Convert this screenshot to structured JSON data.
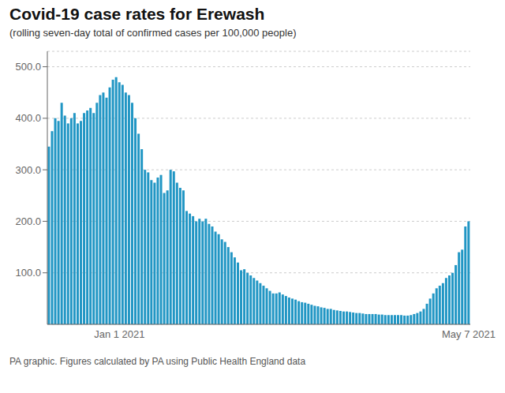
{
  "chart_data": {
    "type": "bar",
    "title": "Covid-19 case rates for Erewash",
    "subtitle": "(rolling seven-day total of confirmed cases per 100,000 people)",
    "footer": "PA graphic. Figures calculated by PA using Public Health England data",
    "categories": [
      null,
      null,
      null,
      null,
      null,
      null,
      null,
      null,
      null,
      null,
      null,
      null,
      null,
      null,
      null,
      null,
      null,
      null,
      null,
      null,
      null,
      null,
      "Jan 1 2021",
      null,
      null,
      null,
      null,
      null,
      null,
      null,
      null,
      null,
      null,
      null,
      null,
      null,
      null,
      null,
      null,
      null,
      null,
      null,
      null,
      null,
      null,
      null,
      null,
      null,
      null,
      null,
      null,
      null,
      null,
      null,
      null,
      null,
      null,
      null,
      null,
      null,
      null,
      null,
      null,
      null,
      null,
      null,
      null,
      null,
      null,
      null,
      null,
      null,
      null,
      null,
      null,
      null,
      null,
      null,
      null,
      null,
      null,
      null,
      null,
      null,
      null,
      null,
      null,
      null,
      null,
      null,
      null,
      null,
      null,
      null,
      null,
      null,
      null,
      null,
      null,
      null,
      null,
      null,
      null,
      null,
      null,
      null,
      null,
      null,
      null,
      null,
      null,
      null,
      null,
      null,
      null,
      null,
      null,
      null,
      null,
      null,
      null,
      null,
      null,
      null,
      null,
      null,
      null,
      null,
      null,
      null,
      null,
      "May 7 2021"
    ],
    "values": [
      345,
      375,
      400,
      395,
      430,
      405,
      390,
      400,
      410,
      390,
      395,
      410,
      415,
      420,
      410,
      430,
      445,
      450,
      440,
      460,
      475,
      480,
      470,
      465,
      450,
      445,
      430,
      400,
      370,
      340,
      300,
      295,
      280,
      275,
      285,
      290,
      255,
      260,
      300,
      297,
      275,
      265,
      260,
      220,
      215,
      210,
      200,
      205,
      200,
      205,
      195,
      190,
      180,
      175,
      165,
      160,
      150,
      140,
      130,
      120,
      105,
      107,
      100,
      95,
      90,
      85,
      80,
      75,
      70,
      65,
      60,
      60,
      62,
      58,
      55,
      52,
      50,
      48,
      45,
      43,
      42,
      40,
      38,
      36,
      35,
      33,
      32,
      30,
      30,
      28,
      27,
      26,
      25,
      25,
      24,
      23,
      22,
      22,
      21,
      20,
      20,
      20,
      20,
      19,
      19,
      18,
      18,
      18,
      18,
      18,
      18,
      17,
      17,
      18,
      20,
      22,
      25,
      30,
      40,
      50,
      60,
      70,
      75,
      80,
      90,
      95,
      100,
      115,
      140,
      145,
      190,
      200
    ],
    "color": "#2196C4",
    "ylim": [
      0,
      530
    ],
    "yticks": [
      {
        "value": 100,
        "label": "100.0"
      },
      {
        "value": 200,
        "label": "200.0"
      },
      {
        "value": 300,
        "label": "300.0"
      },
      {
        "value": 400,
        "label": "400.0"
      },
      {
        "value": 500,
        "label": "500.0"
      }
    ],
    "grid": true
  }
}
